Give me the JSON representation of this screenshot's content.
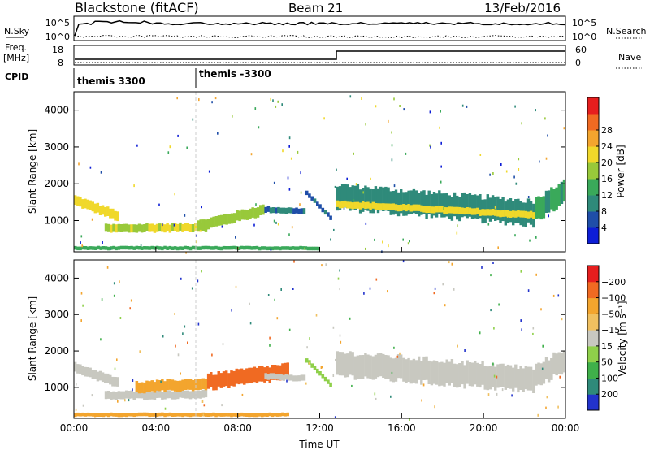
{
  "header": {
    "title": "Blackstone (fitACF)",
    "beam": "Beam 21",
    "date": "13/Feb/2016"
  },
  "top_panels": {
    "nsky": {
      "label": "N.Sky",
      "right_label": "N.Search",
      "yticks": [
        "10^5",
        "10^0"
      ],
      "right_yticks": [
        "10^5",
        "10^0"
      ]
    },
    "freq": {
      "label_line1": "Freq.",
      "label_line2": "[MHz]",
      "right_label": "Nave",
      "yticks": [
        "18",
        "8"
      ],
      "right_yticks": [
        "60",
        "0"
      ]
    },
    "cpid": {
      "label": "CPID",
      "segments": [
        "themis 3300",
        "themis -3300"
      ]
    }
  },
  "chart_data": [
    {
      "type": "heatmap",
      "title": "",
      "xlabel": "",
      "ylabel": "Slant Range [km]",
      "x_tick_labels": [
        "00:00",
        "04:00",
        "08:00",
        "12:00",
        "16:00",
        "20:00",
        "00:00"
      ],
      "xlim": [
        0,
        24
      ],
      "ylim": [
        150,
        4500
      ],
      "y_ticks": [
        1000,
        2000,
        3000,
        4000
      ],
      "grid": false,
      "colorbar": {
        "label": "Power [dB]",
        "ticks": [
          4,
          8,
          12,
          16,
          20,
          24,
          28
        ],
        "colors": [
          "#0d1dd6",
          "#1f4ea8",
          "#2f8a7a",
          "#3aa95a",
          "#98c93a",
          "#f0d82a",
          "#f3a52e",
          "#f06a22",
          "#e61e1e"
        ]
      },
      "bands": [
        {
          "t_start": 0.0,
          "t_end": 2.2,
          "r_start": 1550,
          "r_end": 1100,
          "width": 260,
          "level": 22
        },
        {
          "t_start": 1.5,
          "t_end": 6.5,
          "r_start": 780,
          "r_end": 820,
          "width": 220,
          "level": 20
        },
        {
          "t_start": 6.0,
          "t_end": 9.3,
          "r_start": 850,
          "r_end": 1300,
          "width": 280,
          "level": 18
        },
        {
          "t_start": 9.3,
          "t_end": 11.3,
          "r_start": 1300,
          "r_end": 1250,
          "width": 160,
          "level": 8
        },
        {
          "t_start": 11.3,
          "t_end": 12.6,
          "r_start": 1750,
          "r_end": 1000,
          "width": 120,
          "level": 8
        },
        {
          "t_start": 12.8,
          "t_end": 22.5,
          "r_start": 1650,
          "r_end": 1200,
          "width": 650,
          "level": 10
        },
        {
          "t_start": 12.8,
          "t_end": 22.5,
          "r_start": 1450,
          "r_end": 1150,
          "width": 180,
          "level": 22
        },
        {
          "t_start": 22.5,
          "t_end": 24.0,
          "r_start": 1300,
          "r_end": 1800,
          "width": 600,
          "level": 12
        },
        {
          "t_start": 0.0,
          "t_end": 12.0,
          "r_start": 250,
          "r_end": 250,
          "width": 100,
          "level": 14
        }
      ]
    },
    {
      "type": "heatmap",
      "title": "",
      "xlabel": "Time UT",
      "ylabel": "Slant Range [km]",
      "x_tick_labels": [
        "00:00",
        "04:00",
        "08:00",
        "12:00",
        "16:00",
        "20:00",
        "00:00"
      ],
      "xlim": [
        0,
        24
      ],
      "ylim": [
        150,
        4500
      ],
      "y_ticks": [
        1000,
        2000,
        3000,
        4000
      ],
      "grid": false,
      "colorbar": {
        "label": "Velocity [m s⁻¹]",
        "ticks": [
          200,
          100,
          50,
          15,
          -15,
          -50,
          -100,
          -200
        ],
        "colors": [
          "#2233cc",
          "#2f8a7a",
          "#3fb04a",
          "#8fd04a",
          "#c8c8c0",
          "#f0c060",
          "#f3a52e",
          "#f06a22",
          "#e61e1e"
        ]
      },
      "bands": [
        {
          "t_start": 0.0,
          "t_end": 2.2,
          "r_start": 1550,
          "r_end": 1100,
          "width": 260,
          "level": -5
        },
        {
          "t_start": 1.5,
          "t_end": 6.5,
          "r_start": 780,
          "r_end": 820,
          "width": 220,
          "level": -5
        },
        {
          "t_start": 3.0,
          "t_end": 6.5,
          "r_start": 1000,
          "r_end": 1100,
          "width": 300,
          "level": -60
        },
        {
          "t_start": 6.5,
          "t_end": 10.5,
          "r_start": 1150,
          "r_end": 1450,
          "width": 420,
          "level": -120
        },
        {
          "t_start": 9.3,
          "t_end": 11.3,
          "r_start": 1300,
          "r_end": 1250,
          "width": 160,
          "level": -5
        },
        {
          "t_start": 11.3,
          "t_end": 12.6,
          "r_start": 1750,
          "r_end": 1000,
          "width": 120,
          "level": 40
        },
        {
          "t_start": 12.8,
          "t_end": 22.5,
          "r_start": 1650,
          "r_end": 1200,
          "width": 650,
          "level": -5
        },
        {
          "t_start": 22.5,
          "t_end": 24.0,
          "r_start": 1300,
          "r_end": 1800,
          "width": 600,
          "level": -5
        },
        {
          "t_start": 0.0,
          "t_end": 10.5,
          "r_start": 250,
          "r_end": 250,
          "width": 100,
          "level": -55
        }
      ]
    }
  ]
}
